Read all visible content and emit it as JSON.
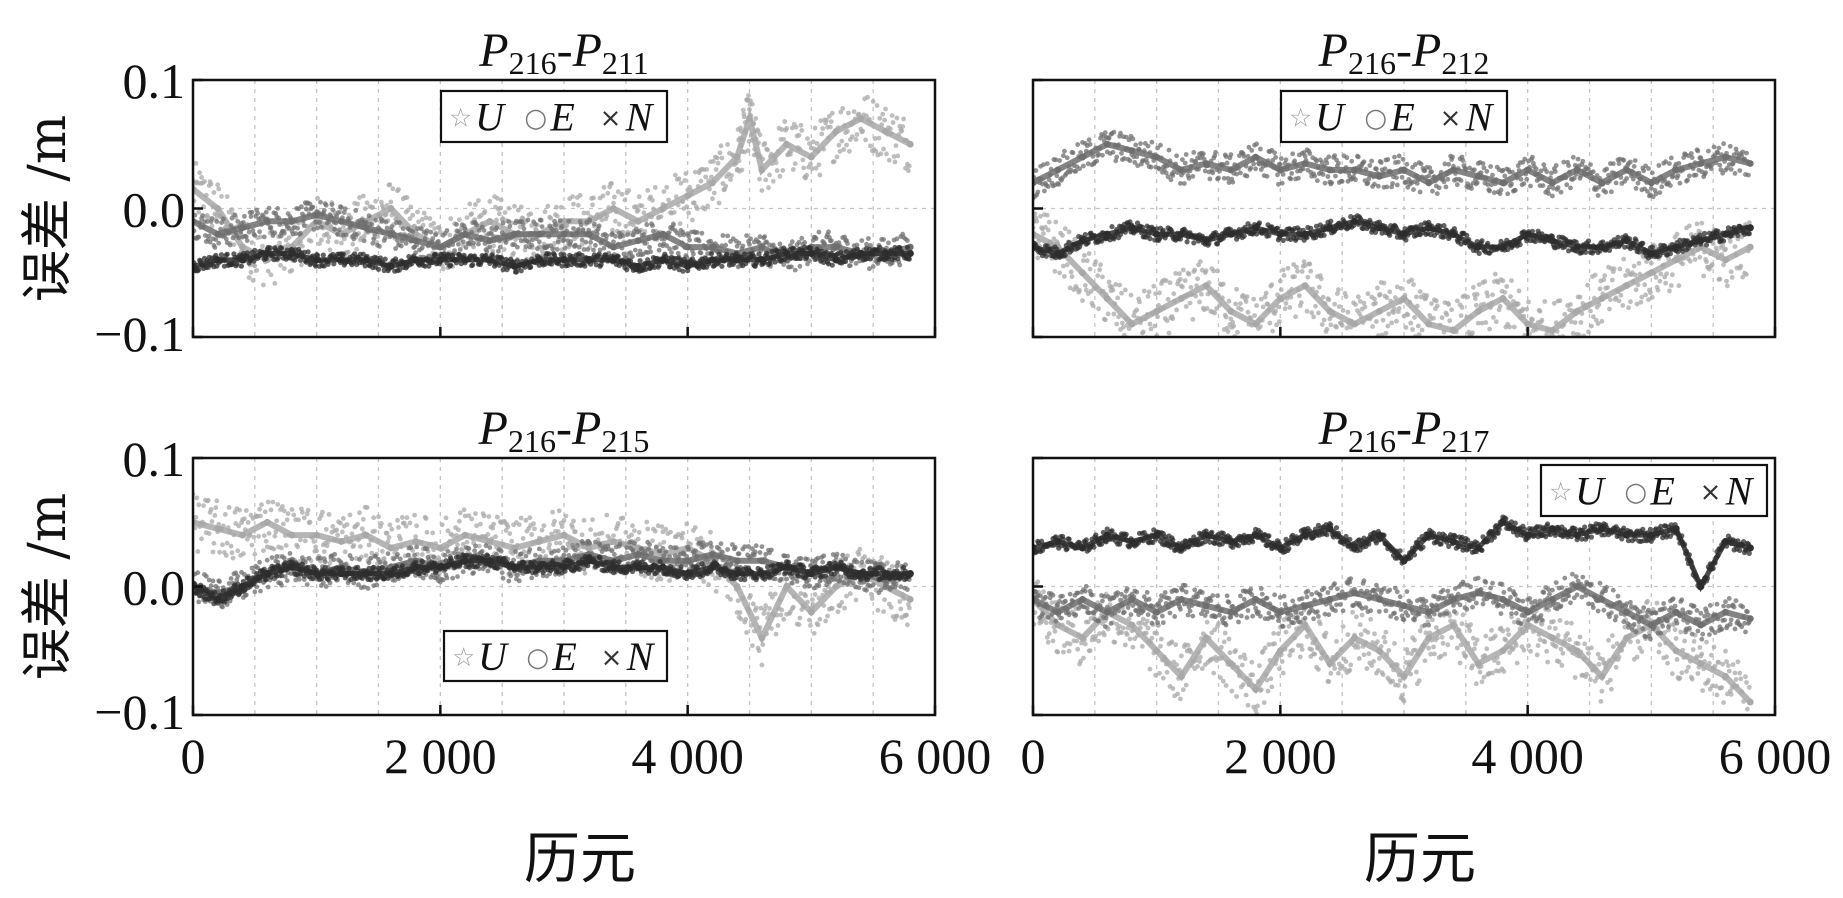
{
  "chart_data": [
    {
      "type": "scatter",
      "title_main": "P",
      "title_sub1": "216",
      "title_sep": "-P",
      "title_sub2": "211",
      "ylabel": "误差 /m",
      "xlabel": "",
      "xlim": [
        0,
        6000
      ],
      "ylim": [
        -0.1,
        0.1
      ],
      "xticks": [
        "0",
        "2 000",
        "4 000",
        "6 000"
      ],
      "yticks": [
        "0.1",
        "0.0",
        "−0.1"
      ],
      "legend_position": "top-center",
      "legend": [
        {
          "marker": "☆",
          "label": "U"
        },
        {
          "marker": "○",
          "label": "E"
        },
        {
          "marker": "×",
          "label": "N"
        }
      ],
      "series": [
        {
          "name": "U",
          "color": "#a8a8a8",
          "x": [
            0,
            200,
            400,
            600,
            800,
            1000,
            1200,
            1400,
            1600,
            1800,
            2000,
            2200,
            2400,
            2600,
            2800,
            3000,
            3200,
            3400,
            3600,
            3800,
            4000,
            4200,
            4400,
            4500,
            4600,
            4800,
            5000,
            5200,
            5400,
            5600,
            5800
          ],
          "y": [
            0.015,
            0.0,
            -0.03,
            -0.04,
            -0.03,
            -0.01,
            -0.02,
            -0.01,
            0.0,
            -0.02,
            -0.03,
            -0.02,
            -0.01,
            -0.02,
            -0.02,
            -0.01,
            -0.01,
            0.0,
            -0.01,
            0.0,
            0.01,
            0.02,
            0.04,
            0.07,
            0.03,
            0.05,
            0.04,
            0.06,
            0.07,
            0.06,
            0.05
          ]
        },
        {
          "name": "E",
          "color": "#6f6f6f",
          "x": [
            0,
            200,
            400,
            600,
            800,
            1000,
            1200,
            1400,
            1600,
            1800,
            2000,
            2200,
            2400,
            2600,
            2800,
            3000,
            3200,
            3400,
            3600,
            3800,
            4000,
            4200,
            4400,
            4600,
            4800,
            5000,
            5200,
            5400,
            5600,
            5800
          ],
          "y": [
            -0.01,
            -0.02,
            -0.015,
            -0.01,
            -0.01,
            -0.005,
            -0.01,
            -0.015,
            -0.02,
            -0.025,
            -0.03,
            -0.02,
            -0.025,
            -0.02,
            -0.02,
            -0.02,
            -0.02,
            -0.03,
            -0.025,
            -0.02,
            -0.03,
            -0.03,
            -0.035,
            -0.03,
            -0.04,
            -0.03,
            -0.03,
            -0.035,
            -0.035,
            -0.03
          ]
        },
        {
          "name": "N",
          "color": "#2e2e2e",
          "x": [
            0,
            200,
            400,
            600,
            800,
            1000,
            1200,
            1400,
            1600,
            1800,
            2000,
            2200,
            2400,
            2600,
            2800,
            3000,
            3200,
            3400,
            3600,
            3800,
            4000,
            4200,
            4400,
            4600,
            4800,
            5000,
            5200,
            5400,
            5600,
            5800
          ],
          "y": [
            -0.045,
            -0.04,
            -0.04,
            -0.035,
            -0.035,
            -0.04,
            -0.04,
            -0.04,
            -0.045,
            -0.04,
            -0.04,
            -0.04,
            -0.04,
            -0.045,
            -0.04,
            -0.04,
            -0.04,
            -0.04,
            -0.045,
            -0.04,
            -0.045,
            -0.04,
            -0.04,
            -0.04,
            -0.035,
            -0.035,
            -0.04,
            -0.035,
            -0.035,
            -0.035
          ]
        }
      ]
    },
    {
      "type": "scatter",
      "title_main": "P",
      "title_sub1": "216",
      "title_sep": "-P",
      "title_sub2": "212",
      "ylabel": "",
      "xlabel": "",
      "xlim": [
        0,
        6000
      ],
      "ylim": [
        -0.1,
        0.1
      ],
      "xticks": [
        "0",
        "2 000",
        "4 000",
        "6 000"
      ],
      "yticks": [],
      "legend_position": "top-center",
      "legend": [
        {
          "marker": "☆",
          "label": "U"
        },
        {
          "marker": "○",
          "label": "E"
        },
        {
          "marker": "×",
          "label": "N"
        }
      ],
      "series": [
        {
          "name": "U",
          "color": "#a8a8a8",
          "x": [
            0,
            200,
            400,
            600,
            800,
            1000,
            1200,
            1400,
            1600,
            1800,
            2000,
            2200,
            2400,
            2600,
            2800,
            3000,
            3200,
            3400,
            3600,
            3800,
            4000,
            4200,
            4400,
            4600,
            4800,
            5000,
            5200,
            5400,
            5600,
            5800
          ],
          "y": [
            -0.02,
            -0.03,
            -0.05,
            -0.07,
            -0.09,
            -0.08,
            -0.07,
            -0.06,
            -0.08,
            -0.09,
            -0.07,
            -0.06,
            -0.08,
            -0.09,
            -0.08,
            -0.07,
            -0.09,
            -0.095,
            -0.08,
            -0.07,
            -0.09,
            -0.095,
            -0.08,
            -0.07,
            -0.06,
            -0.05,
            -0.04,
            -0.03,
            -0.04,
            -0.03
          ]
        },
        {
          "name": "E",
          "color": "#6f6f6f",
          "x": [
            0,
            200,
            400,
            600,
            800,
            1000,
            1200,
            1400,
            1600,
            1800,
            2000,
            2200,
            2400,
            2600,
            2800,
            3000,
            3200,
            3400,
            3600,
            3800,
            4000,
            4200,
            4400,
            4600,
            4800,
            5000,
            5200,
            5400,
            5600,
            5800
          ],
          "y": [
            0.02,
            0.03,
            0.04,
            0.05,
            0.045,
            0.04,
            0.03,
            0.035,
            0.03,
            0.04,
            0.03,
            0.035,
            0.03,
            0.03,
            0.025,
            0.03,
            0.02,
            0.03,
            0.025,
            0.02,
            0.03,
            0.02,
            0.03,
            0.02,
            0.03,
            0.02,
            0.03,
            0.035,
            0.04,
            0.035
          ]
        },
        {
          "name": "N",
          "color": "#2e2e2e",
          "x": [
            0,
            200,
            400,
            600,
            800,
            1000,
            1200,
            1400,
            1600,
            1800,
            2000,
            2200,
            2400,
            2600,
            2800,
            3000,
            3200,
            3400,
            3600,
            3800,
            4000,
            4200,
            4400,
            4600,
            4800,
            5000,
            5200,
            5400,
            5600,
            5800
          ],
          "y": [
            -0.03,
            -0.035,
            -0.025,
            -0.02,
            -0.015,
            -0.02,
            -0.02,
            -0.025,
            -0.02,
            -0.015,
            -0.02,
            -0.02,
            -0.015,
            -0.01,
            -0.015,
            -0.02,
            -0.015,
            -0.02,
            -0.03,
            -0.03,
            -0.02,
            -0.025,
            -0.03,
            -0.03,
            -0.025,
            -0.035,
            -0.03,
            -0.025,
            -0.02,
            -0.015
          ]
        }
      ]
    },
    {
      "type": "scatter",
      "title_main": "P",
      "title_sub1": "216",
      "title_sep": "-P",
      "title_sub2": "215",
      "ylabel": "误差 /m",
      "xlabel": "历元",
      "xlim": [
        0,
        6000
      ],
      "ylim": [
        -0.1,
        0.1
      ],
      "xticks": [
        "0",
        "2 000",
        "4 000",
        "6 000"
      ],
      "yticks": [
        "0.1",
        "0.0",
        "−0.1"
      ],
      "legend_position": "bottom-center",
      "legend": [
        {
          "marker": "☆",
          "label": "U"
        },
        {
          "marker": "○",
          "label": "E"
        },
        {
          "marker": "×",
          "label": "N"
        }
      ],
      "series": [
        {
          "name": "U",
          "color": "#a8a8a8",
          "x": [
            0,
            200,
            400,
            600,
            800,
            1000,
            1200,
            1400,
            1600,
            1800,
            2000,
            2200,
            2400,
            2600,
            2800,
            3000,
            3200,
            3400,
            3600,
            3800,
            4000,
            4200,
            4400,
            4600,
            4800,
            5000,
            5200,
            5400,
            5600,
            5800
          ],
          "y": [
            0.05,
            0.045,
            0.04,
            0.05,
            0.04,
            0.04,
            0.035,
            0.04,
            0.03,
            0.035,
            0.03,
            0.04,
            0.035,
            0.03,
            0.035,
            0.04,
            0.03,
            0.035,
            0.03,
            0.025,
            0.03,
            0.02,
            0.0,
            -0.04,
            0.0,
            -0.02,
            0.0,
            0.01,
            0.0,
            -0.01
          ]
        },
        {
          "name": "E",
          "color": "#6f6f6f",
          "x": [
            0,
            200,
            400,
            600,
            800,
            1000,
            1200,
            1400,
            1600,
            1800,
            2000,
            2200,
            2400,
            2600,
            2800,
            3000,
            3200,
            3400,
            3600,
            3800,
            4000,
            4200,
            4400,
            4600,
            4800,
            5000,
            5200,
            5400,
            5600,
            5800
          ],
          "y": [
            0.0,
            -0.005,
            0.0,
            0.01,
            0.015,
            0.01,
            0.015,
            0.01,
            0.015,
            0.02,
            0.015,
            0.02,
            0.02,
            0.015,
            0.02,
            0.02,
            0.025,
            0.02,
            0.025,
            0.02,
            0.02,
            0.025,
            0.02,
            0.02,
            0.015,
            0.01,
            0.015,
            0.01,
            0.005,
            0.01
          ]
        },
        {
          "name": "N",
          "color": "#2e2e2e",
          "x": [
            0,
            200,
            400,
            600,
            800,
            1000,
            1200,
            1400,
            1600,
            1800,
            2000,
            2200,
            2400,
            2600,
            2800,
            3000,
            3200,
            3400,
            3600,
            3800,
            4000,
            4200,
            4400,
            4600,
            4800,
            5000,
            5200,
            5400,
            5600,
            5800
          ],
          "y": [
            0.0,
            -0.01,
            0.0,
            0.01,
            0.015,
            0.01,
            0.01,
            0.01,
            0.01,
            0.015,
            0.015,
            0.02,
            0.02,
            0.015,
            0.015,
            0.015,
            0.02,
            0.015,
            0.015,
            0.015,
            0.01,
            0.015,
            0.01,
            0.01,
            0.015,
            0.01,
            0.015,
            0.01,
            0.01,
            0.01
          ]
        }
      ]
    },
    {
      "type": "scatter",
      "title_main": "P",
      "title_sub1": "216",
      "title_sep": "-P",
      "title_sub2": "217",
      "ylabel": "",
      "xlabel": "历元",
      "xlim": [
        0,
        6000
      ],
      "ylim": [
        -0.1,
        0.1
      ],
      "xticks": [
        "0",
        "2 000",
        "4 000",
        "6 000"
      ],
      "yticks": [],
      "legend_position": "top-right",
      "legend": [
        {
          "marker": "☆",
          "label": "U"
        },
        {
          "marker": "○",
          "label": "E"
        },
        {
          "marker": "×",
          "label": "N"
        }
      ],
      "series": [
        {
          "name": "U",
          "color": "#a8a8a8",
          "x": [
            0,
            200,
            400,
            600,
            800,
            1000,
            1200,
            1400,
            1600,
            1800,
            2000,
            2200,
            2400,
            2600,
            2800,
            3000,
            3200,
            3400,
            3600,
            3800,
            4000,
            4200,
            4400,
            4600,
            4800,
            5000,
            5200,
            5400,
            5600,
            5800
          ],
          "y": [
            -0.01,
            -0.03,
            -0.04,
            -0.02,
            -0.03,
            -0.05,
            -0.07,
            -0.04,
            -0.06,
            -0.08,
            -0.05,
            -0.03,
            -0.06,
            -0.04,
            -0.05,
            -0.07,
            -0.04,
            -0.03,
            -0.06,
            -0.05,
            -0.03,
            -0.04,
            -0.05,
            -0.07,
            -0.04,
            -0.03,
            -0.05,
            -0.06,
            -0.07,
            -0.09
          ]
        },
        {
          "name": "E",
          "color": "#6f6f6f",
          "x": [
            0,
            200,
            400,
            600,
            800,
            1000,
            1200,
            1400,
            1600,
            1800,
            2000,
            2200,
            2400,
            2600,
            2800,
            3000,
            3200,
            3400,
            3600,
            3800,
            4000,
            4200,
            4400,
            4600,
            4800,
            5000,
            5200,
            5400,
            5600,
            5800
          ],
          "y": [
            -0.01,
            -0.02,
            -0.01,
            -0.02,
            -0.01,
            -0.02,
            -0.01,
            -0.015,
            -0.02,
            -0.01,
            -0.02,
            -0.015,
            -0.01,
            -0.005,
            -0.01,
            -0.015,
            -0.02,
            -0.01,
            -0.005,
            -0.01,
            -0.02,
            -0.01,
            0.0,
            -0.01,
            -0.02,
            -0.03,
            -0.02,
            -0.03,
            -0.02,
            -0.025
          ]
        },
        {
          "name": "N",
          "color": "#2e2e2e",
          "x": [
            0,
            200,
            400,
            600,
            800,
            1000,
            1200,
            1400,
            1600,
            1800,
            2000,
            2200,
            2400,
            2600,
            2800,
            3000,
            3200,
            3400,
            3600,
            3800,
            4000,
            4200,
            4400,
            4600,
            4800,
            5000,
            5200,
            5400,
            5600,
            5800
          ],
          "y": [
            0.03,
            0.035,
            0.03,
            0.04,
            0.035,
            0.04,
            0.03,
            0.04,
            0.035,
            0.04,
            0.03,
            0.04,
            0.045,
            0.03,
            0.04,
            0.02,
            0.04,
            0.035,
            0.03,
            0.05,
            0.04,
            0.045,
            0.04,
            0.045,
            0.04,
            0.04,
            0.045,
            0.0,
            0.035,
            0.03
          ]
        }
      ]
    }
  ]
}
